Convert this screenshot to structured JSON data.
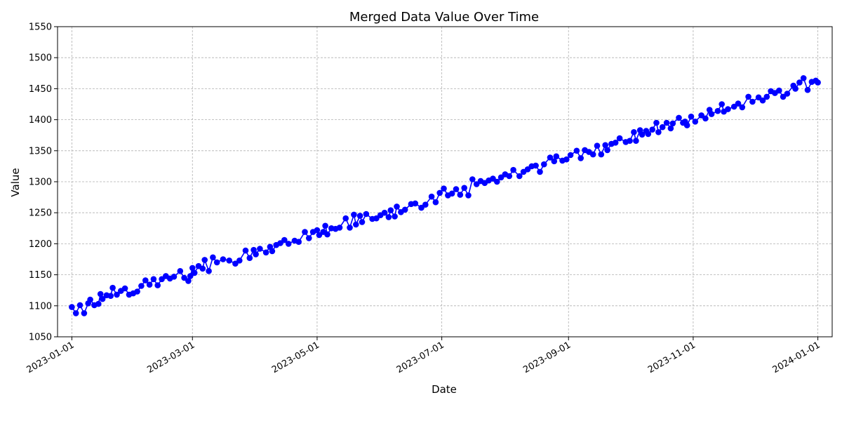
{
  "chart_data": {
    "type": "line",
    "title": "Merged Data Value Over Time",
    "xlabel": "Date",
    "ylabel": "Value",
    "xlim": [
      "2022-12-25",
      "2024-01-08"
    ],
    "ylim": [
      1050,
      1550
    ],
    "grid": true,
    "line_color": "#0000ff",
    "marker_color": "#0000ff",
    "x_ticks": [
      "2023-01-01",
      "2023-03-01",
      "2023-05-01",
      "2023-07-01",
      "2023-09-01",
      "2023-11-01",
      "2024-01-01"
    ],
    "y_ticks": [
      1050,
      1100,
      1150,
      1200,
      1250,
      1300,
      1350,
      1400,
      1450,
      1500,
      1550
    ],
    "series": [
      {
        "points": [
          [
            "2023-01-01",
            1098
          ],
          [
            "2023-01-03",
            1088
          ],
          [
            "2023-01-05",
            1101
          ],
          [
            "2023-01-07",
            1088
          ],
          [
            "2023-01-09",
            1104
          ],
          [
            "2023-01-10",
            1110
          ],
          [
            "2023-01-12",
            1101
          ],
          [
            "2023-01-14",
            1103
          ],
          [
            "2023-01-15",
            1119
          ],
          [
            "2023-01-16",
            1111
          ],
          [
            "2023-01-18",
            1117
          ],
          [
            "2023-01-20",
            1116
          ],
          [
            "2023-01-21",
            1129
          ],
          [
            "2023-01-23",
            1118
          ],
          [
            "2023-01-25",
            1124
          ],
          [
            "2023-01-27",
            1128
          ],
          [
            "2023-01-29",
            1118
          ],
          [
            "2023-01-31",
            1120
          ],
          [
            "2023-02-02",
            1123
          ],
          [
            "2023-02-04",
            1132
          ],
          [
            "2023-02-06",
            1141
          ],
          [
            "2023-02-08",
            1134
          ],
          [
            "2023-02-10",
            1143
          ],
          [
            "2023-02-12",
            1133
          ],
          [
            "2023-02-14",
            1143
          ],
          [
            "2023-02-16",
            1148
          ],
          [
            "2023-02-18",
            1144
          ],
          [
            "2023-02-20",
            1147
          ],
          [
            "2023-02-23",
            1156
          ],
          [
            "2023-02-25",
            1145
          ],
          [
            "2023-02-27",
            1140
          ],
          [
            "2023-02-28",
            1148
          ],
          [
            "2023-03-01",
            1161
          ],
          [
            "2023-03-02",
            1153
          ],
          [
            "2023-03-04",
            1164
          ],
          [
            "2023-03-06",
            1160
          ],
          [
            "2023-03-07",
            1174
          ],
          [
            "2023-03-09",
            1156
          ],
          [
            "2023-03-11",
            1178
          ],
          [
            "2023-03-13",
            1170
          ],
          [
            "2023-03-16",
            1175
          ],
          [
            "2023-03-19",
            1173
          ],
          [
            "2023-03-22",
            1168
          ],
          [
            "2023-03-24",
            1173
          ],
          [
            "2023-03-27",
            1189
          ],
          [
            "2023-03-29",
            1177
          ],
          [
            "2023-03-31",
            1190
          ],
          [
            "2023-04-01",
            1183
          ],
          [
            "2023-04-03",
            1192
          ],
          [
            "2023-04-06",
            1186
          ],
          [
            "2023-04-08",
            1195
          ],
          [
            "2023-04-09",
            1188
          ],
          [
            "2023-04-11",
            1198
          ],
          [
            "2023-04-13",
            1201
          ],
          [
            "2023-04-15",
            1206
          ],
          [
            "2023-04-17",
            1200
          ],
          [
            "2023-04-20",
            1205
          ],
          [
            "2023-04-22",
            1203
          ],
          [
            "2023-04-25",
            1219
          ],
          [
            "2023-04-27",
            1209
          ],
          [
            "2023-04-29",
            1219
          ],
          [
            "2023-05-01",
            1222
          ],
          [
            "2023-05-02",
            1214
          ],
          [
            "2023-05-04",
            1219
          ],
          [
            "2023-05-05",
            1229
          ],
          [
            "2023-05-06",
            1215
          ],
          [
            "2023-05-08",
            1225
          ],
          [
            "2023-05-10",
            1224
          ],
          [
            "2023-05-12",
            1226
          ],
          [
            "2023-05-15",
            1241
          ],
          [
            "2023-05-17",
            1226
          ],
          [
            "2023-05-19",
            1247
          ],
          [
            "2023-05-20",
            1231
          ],
          [
            "2023-05-22",
            1245
          ],
          [
            "2023-05-23",
            1235
          ],
          [
            "2023-05-25",
            1248
          ],
          [
            "2023-05-28",
            1240
          ],
          [
            "2023-05-30",
            1241
          ],
          [
            "2023-06-01",
            1246
          ],
          [
            "2023-06-03",
            1250
          ],
          [
            "2023-06-05",
            1243
          ],
          [
            "2023-06-06",
            1254
          ],
          [
            "2023-06-08",
            1244
          ],
          [
            "2023-06-09",
            1260
          ],
          [
            "2023-06-11",
            1251
          ],
          [
            "2023-06-13",
            1255
          ],
          [
            "2023-06-16",
            1264
          ],
          [
            "2023-06-18",
            1265
          ],
          [
            "2023-06-21",
            1258
          ],
          [
            "2023-06-23",
            1263
          ],
          [
            "2023-06-26",
            1276
          ],
          [
            "2023-06-28",
            1267
          ],
          [
            "2023-06-30",
            1282
          ],
          [
            "2023-07-02",
            1289
          ],
          [
            "2023-07-04",
            1278
          ],
          [
            "2023-07-06",
            1281
          ],
          [
            "2023-07-08",
            1288
          ],
          [
            "2023-07-10",
            1279
          ],
          [
            "2023-07-12",
            1290
          ],
          [
            "2023-07-14",
            1278
          ],
          [
            "2023-07-16",
            1304
          ],
          [
            "2023-07-18",
            1296
          ],
          [
            "2023-07-20",
            1301
          ],
          [
            "2023-07-22",
            1298
          ],
          [
            "2023-07-24",
            1302
          ],
          [
            "2023-07-26",
            1305
          ],
          [
            "2023-07-28",
            1300
          ],
          [
            "2023-07-30",
            1307
          ],
          [
            "2023-08-01",
            1312
          ],
          [
            "2023-08-03",
            1309
          ],
          [
            "2023-08-05",
            1319
          ],
          [
            "2023-08-08",
            1309
          ],
          [
            "2023-08-10",
            1316
          ],
          [
            "2023-08-12",
            1320
          ],
          [
            "2023-08-14",
            1325
          ],
          [
            "2023-08-16",
            1326
          ],
          [
            "2023-08-18",
            1316
          ],
          [
            "2023-08-20",
            1328
          ],
          [
            "2023-08-23",
            1339
          ],
          [
            "2023-08-25",
            1333
          ],
          [
            "2023-08-26",
            1341
          ],
          [
            "2023-08-29",
            1334
          ],
          [
            "2023-08-31",
            1336
          ],
          [
            "2023-09-02",
            1343
          ],
          [
            "2023-09-05",
            1350
          ],
          [
            "2023-09-07",
            1338
          ],
          [
            "2023-09-09",
            1351
          ],
          [
            "2023-09-11",
            1348
          ],
          [
            "2023-09-13",
            1344
          ],
          [
            "2023-09-15",
            1358
          ],
          [
            "2023-09-17",
            1344
          ],
          [
            "2023-09-19",
            1359
          ],
          [
            "2023-09-20",
            1351
          ],
          [
            "2023-09-22",
            1361
          ],
          [
            "2023-09-24",
            1363
          ],
          [
            "2023-09-26",
            1370
          ],
          [
            "2023-09-29",
            1364
          ],
          [
            "2023-10-01",
            1366
          ],
          [
            "2023-10-03",
            1380
          ],
          [
            "2023-10-04",
            1366
          ],
          [
            "2023-10-06",
            1383
          ],
          [
            "2023-10-07",
            1376
          ],
          [
            "2023-10-09",
            1382
          ],
          [
            "2023-10-10",
            1377
          ],
          [
            "2023-10-12",
            1384
          ],
          [
            "2023-10-14",
            1395
          ],
          [
            "2023-10-15",
            1380
          ],
          [
            "2023-10-17",
            1388
          ],
          [
            "2023-10-19",
            1395
          ],
          [
            "2023-10-21",
            1386
          ],
          [
            "2023-10-22",
            1394
          ],
          [
            "2023-10-25",
            1403
          ],
          [
            "2023-10-27",
            1395
          ],
          [
            "2023-10-28",
            1397
          ],
          [
            "2023-10-29",
            1391
          ],
          [
            "2023-10-31",
            1405
          ],
          [
            "2023-11-02",
            1397
          ],
          [
            "2023-11-05",
            1407
          ],
          [
            "2023-11-07",
            1402
          ],
          [
            "2023-11-09",
            1416
          ],
          [
            "2023-11-10",
            1409
          ],
          [
            "2023-11-13",
            1414
          ],
          [
            "2023-11-15",
            1425
          ],
          [
            "2023-11-16",
            1413
          ],
          [
            "2023-11-18",
            1417
          ],
          [
            "2023-11-21",
            1421
          ],
          [
            "2023-11-23",
            1426
          ],
          [
            "2023-11-25",
            1420
          ],
          [
            "2023-11-28",
            1437
          ],
          [
            "2023-11-30",
            1429
          ],
          [
            "2023-12-03",
            1436
          ],
          [
            "2023-12-05",
            1431
          ],
          [
            "2023-12-07",
            1437
          ],
          [
            "2023-12-09",
            1446
          ],
          [
            "2023-12-11",
            1443
          ],
          [
            "2023-12-13",
            1447
          ],
          [
            "2023-12-15",
            1437
          ],
          [
            "2023-12-17",
            1442
          ],
          [
            "2023-12-20",
            1455
          ],
          [
            "2023-12-21",
            1450
          ],
          [
            "2023-12-23",
            1460
          ],
          [
            "2023-12-25",
            1467
          ],
          [
            "2023-12-27",
            1448
          ],
          [
            "2023-12-29",
            1461
          ],
          [
            "2023-12-31",
            1463
          ],
          [
            "2024-01-01",
            1460
          ]
        ]
      }
    ]
  }
}
